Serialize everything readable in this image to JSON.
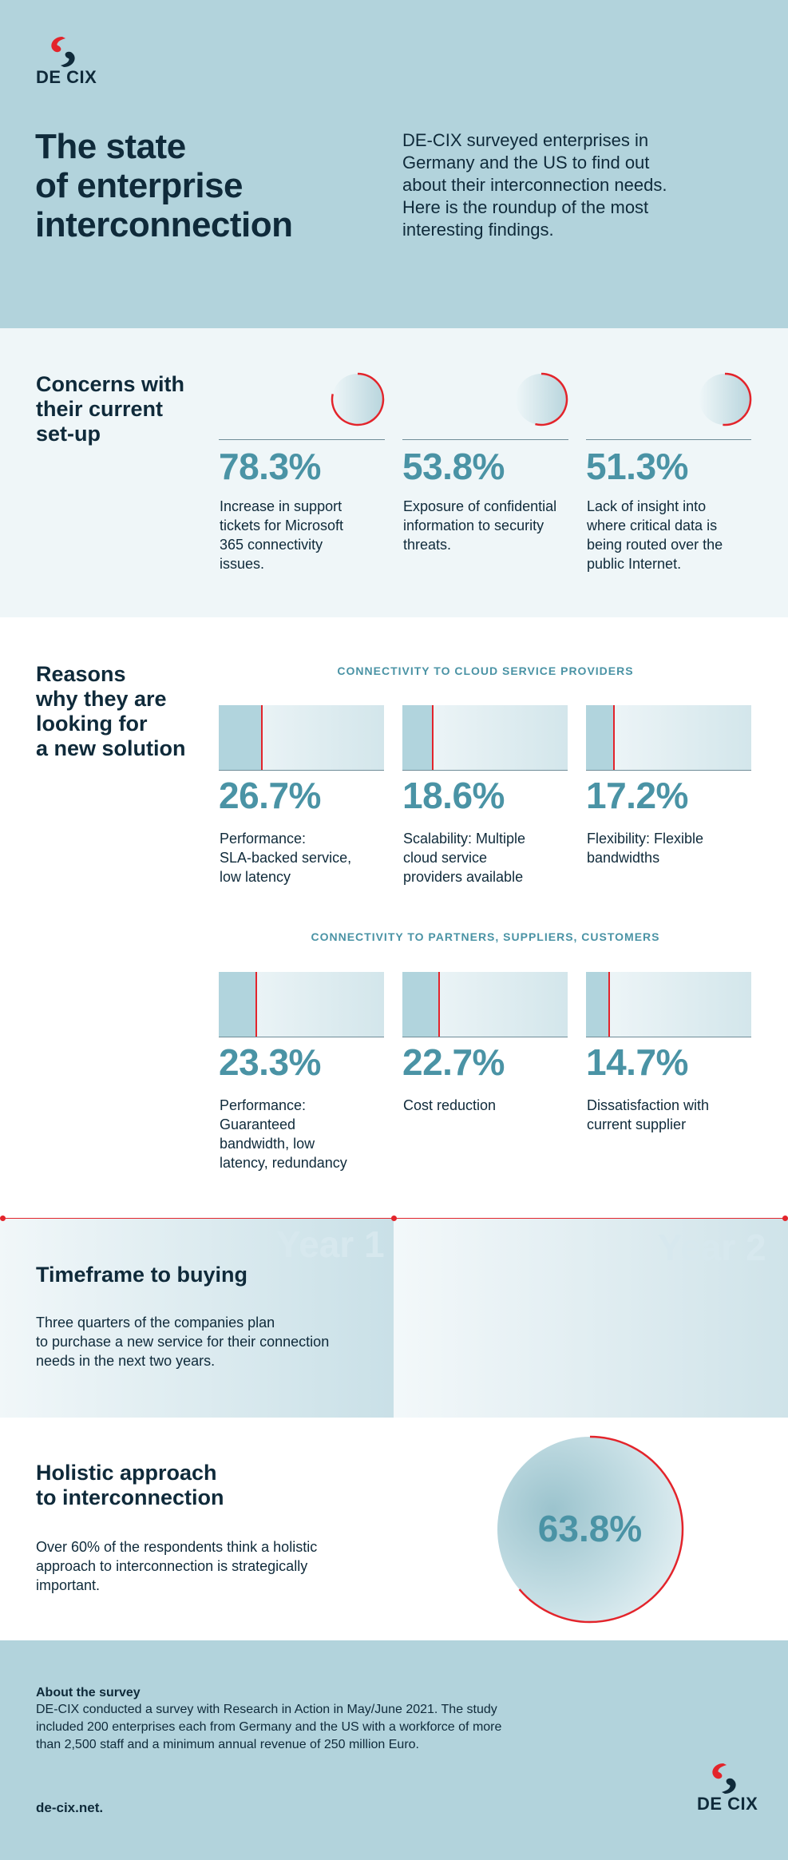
{
  "header": {
    "logo_text": "DE CIX",
    "title_lines": [
      "The state",
      "of enterprise",
      "interconnection"
    ],
    "intro_lines": [
      "DE-CIX surveyed enterprises in",
      "Germany and the US to find out",
      "about their interconnection needs.",
      "Here is the roundup of the most",
      "interesting findings."
    ]
  },
  "concerns": {
    "title_lines": [
      "Concerns with",
      "their current",
      "set-up"
    ],
    "items": [
      {
        "value": "78.3%",
        "fraction": 0.783,
        "desc_lines": [
          "Increase in support",
          "tickets for Microsoft",
          "365 connectivity",
          "issues."
        ]
      },
      {
        "value": "53.8%",
        "fraction": 0.538,
        "desc_lines": [
          "Exposure of confidential",
          "information to security",
          "threats."
        ]
      },
      {
        "value": "51.3%",
        "fraction": 0.513,
        "desc_lines": [
          "Lack of insight into",
          "where critical data is",
          "being routed over the",
          "public Internet."
        ]
      }
    ]
  },
  "reasons": {
    "title_lines": [
      "Reasons",
      "why they are",
      "looking for",
      "a new solution"
    ],
    "groups": [
      {
        "heading": "CONNECTIVITY TO CLOUD SERVICE PROVIDERS",
        "items": [
          {
            "value": "26.7%",
            "fraction": 0.267,
            "desc_lines": [
              "Performance:",
              "SLA-backed service,",
              "low latency"
            ]
          },
          {
            "value": "18.6%",
            "fraction": 0.186,
            "desc_lines": [
              "Scalability: Multiple",
              "cloud service",
              "providers available"
            ]
          },
          {
            "value": "17.2%",
            "fraction": 0.172,
            "desc_lines": [
              "Flexibility: Flexible",
              "bandwidths"
            ]
          }
        ]
      },
      {
        "heading": "CONNECTIVITY TO PARTNERS, SUPPLIERS, CUSTOMERS",
        "items": [
          {
            "value": "23.3%",
            "fraction": 0.233,
            "desc_lines": [
              "Performance:",
              "Guaranteed",
              "bandwidth, low",
              "latency, redundancy"
            ]
          },
          {
            "value": "22.7%",
            "fraction": 0.227,
            "desc_lines": [
              "Cost reduction"
            ]
          },
          {
            "value": "14.7%",
            "fraction": 0.147,
            "desc_lines": [
              "Dissatisfaction with",
              "current supplier"
            ]
          }
        ]
      }
    ]
  },
  "timeframe": {
    "title": "Timeframe to buying",
    "year1": "Year 1",
    "year2": "Year 2",
    "text_lines": [
      "Three quarters of the companies plan",
      "to purchase a new service for their connection",
      "needs in the next two years."
    ]
  },
  "holistic": {
    "title_lines": [
      "Holistic approach",
      "to interconnection"
    ],
    "text_lines": [
      "Over 60% of the respondents think a holistic",
      "approach to interconnection is strategically",
      "important."
    ],
    "value": "63.8%",
    "fraction": 0.638
  },
  "footer": {
    "about_title": "About the survey",
    "about_lines": [
      "DE-CIX conducted a survey with Research in Action in May/June 2021. The study",
      "included 200 enterprises each from Germany and the US with a workforce of more",
      "than 2,500 staff and a minimum annual revenue of 250 million Euro."
    ],
    "website": "de-cix.net.",
    "logo_text": "DE CIX"
  },
  "colors": {
    "accent_red": "#e3242b",
    "teal": "#4a93a5",
    "header_bg": "#b2d3dc",
    "light_bg": "#eff6f8",
    "navy": "#0f2a3a"
  }
}
